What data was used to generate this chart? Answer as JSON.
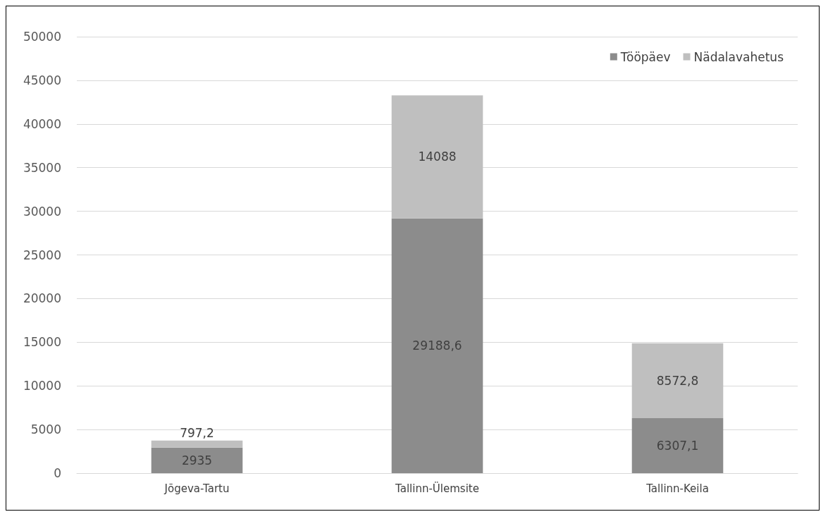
{
  "chart_data": {
    "type": "bar",
    "stacked": true,
    "categories": [
      "Jõgeva-Tartu",
      "Tallinn-Ülemsite",
      "Tallinn-Keila"
    ],
    "series": [
      {
        "name": "Tööpäev",
        "color": "#8c8c8c",
        "values": [
          2935,
          29188.6,
          6307.1
        ],
        "value_labels": [
          "2935",
          "29188,6",
          "6307,1"
        ]
      },
      {
        "name": "Nädalavahetus",
        "color": "#bfbfbf",
        "values": [
          797.2,
          14088,
          8572.8
        ],
        "value_labels": [
          "797,2",
          "14088",
          "8572,8"
        ]
      }
    ],
    "ylim": [
      0,
      50000
    ],
    "yticks": [
      0,
      5000,
      10000,
      15000,
      20000,
      25000,
      30000,
      35000,
      40000,
      45000,
      50000
    ],
    "grid": "y",
    "legend": "top right"
  }
}
